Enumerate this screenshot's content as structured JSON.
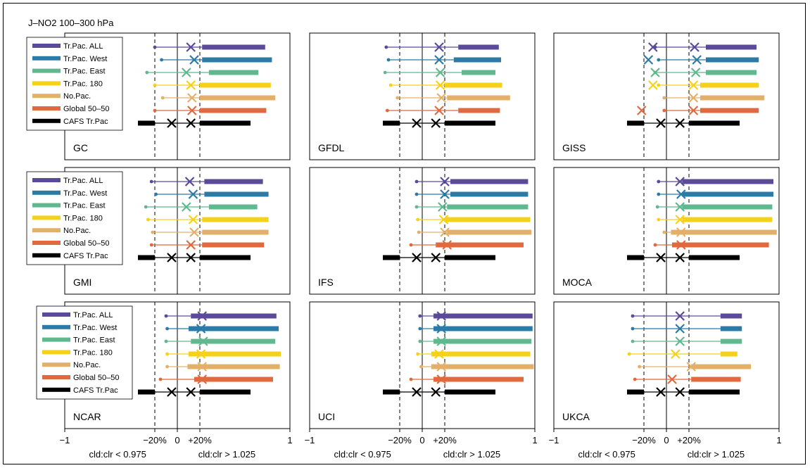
{
  "title": "J–NO2  100–300 hPa",
  "legend": [
    {
      "label": "Tr.Pac. ALL",
      "color": "#5b4a9a"
    },
    {
      "label": "Tr.Pac. West",
      "color": "#2b7ba6"
    },
    {
      "label": "Tr.Pac. East",
      "color": "#5fb88e"
    },
    {
      "label": "Tr.Pac. 180",
      "color": "#f5d11a"
    },
    {
      "label": "No.Pac.",
      "color": "#e3b06a"
    },
    {
      "label": "Global 50–50",
      "color": "#e0693f"
    },
    {
      "label": "CAFS  Tr.Pac",
      "color": "#000000"
    }
  ],
  "axis": {
    "tick_labels": [
      "−1",
      "−20%",
      "0",
      "+20%",
      "1"
    ],
    "neg_label": "cld:clr < 0.975",
    "pos_label": "cld:clr > 1.025"
  },
  "chart_data": {
    "type": "range",
    "xlim": [
      -1,
      1
    ],
    "ref_lines": [
      -0.2,
      0,
      0.2
    ],
    "series_names": [
      "Tr.Pac. ALL",
      "Tr.Pac. West",
      "Tr.Pac. East",
      "Tr.Pac. 180",
      "No.Pac.",
      "Global 50–50",
      "CAFS  Tr.Pac"
    ],
    "cafs": {
      "low": -0.35,
      "neg_end": -0.2,
      "x_neg": -0.05,
      "x_pos": 0.12,
      "pos_start": 0.2,
      "high": 0.65
    },
    "panels": [
      {
        "name": "GC",
        "series": [
          {
            "low": -0.2,
            "neg_end": -0.05,
            "x_neg": null,
            "x_pos": 0.12,
            "pos_start": 0.22,
            "high": 0.78
          },
          {
            "low": -0.14,
            "neg_end": -0.05,
            "x_neg": null,
            "x_pos": 0.15,
            "pos_start": 0.22,
            "high": 0.84
          },
          {
            "low": -0.27,
            "neg_end": -0.05,
            "x_neg": null,
            "x_pos": 0.08,
            "pos_start": 0.28,
            "high": 0.72
          },
          {
            "low": -0.2,
            "neg_end": -0.05,
            "x_neg": null,
            "x_pos": 0.12,
            "pos_start": 0.2,
            "high": 0.83
          },
          {
            "low": -0.13,
            "neg_end": -0.05,
            "x_neg": null,
            "x_pos": 0.13,
            "pos_start": 0.2,
            "high": 0.87
          },
          {
            "low": -0.2,
            "neg_end": -0.05,
            "x_neg": null,
            "x_pos": 0.13,
            "pos_start": 0.2,
            "high": 0.79
          }
        ]
      },
      {
        "name": "GFDL",
        "series": [
          {
            "low": -0.32,
            "neg_end": -0.05,
            "x_neg": null,
            "x_pos": 0.15,
            "pos_start": 0.32,
            "high": 0.68
          },
          {
            "low": -0.3,
            "neg_end": -0.05,
            "x_neg": null,
            "x_pos": 0.15,
            "pos_start": 0.28,
            "high": 0.7
          },
          {
            "low": -0.33,
            "neg_end": -0.05,
            "x_neg": null,
            "x_pos": 0.16,
            "pos_start": 0.35,
            "high": 0.65
          },
          {
            "low": -0.28,
            "neg_end": -0.05,
            "x_neg": null,
            "x_pos": 0.16,
            "pos_start": 0.2,
            "high": 0.71
          },
          {
            "low": -0.22,
            "neg_end": -0.05,
            "x_neg": null,
            "x_pos": 0.17,
            "pos_start": 0.22,
            "high": 0.78
          },
          {
            "low": -0.31,
            "neg_end": -0.05,
            "x_neg": null,
            "x_pos": 0.15,
            "pos_start": 0.32,
            "high": 0.69
          }
        ]
      },
      {
        "name": "GISS",
        "series": [
          {
            "low": -0.1,
            "neg_end": -0.05,
            "x_neg": -0.12,
            "x_pos": 0.25,
            "pos_start": 0.35,
            "high": 0.8
          },
          {
            "low": -0.07,
            "neg_end": -0.05,
            "x_neg": -0.16,
            "x_pos": 0.27,
            "pos_start": 0.35,
            "high": 0.82
          },
          {
            "low": -0.1,
            "neg_end": -0.05,
            "x_neg": -0.1,
            "x_pos": 0.26,
            "pos_start": 0.35,
            "high": 0.8
          },
          {
            "low": -0.07,
            "neg_end": -0.05,
            "x_neg": -0.12,
            "x_pos": 0.24,
            "pos_start": 0.3,
            "high": 0.82
          },
          {
            "low": -0.02,
            "neg_end": -0.05,
            "x_neg": null,
            "x_pos": 0.24,
            "pos_start": 0.3,
            "high": 0.87
          },
          {
            "low": -0.02,
            "neg_end": -0.05,
            "x_neg": -0.22,
            "x_pos": 0.24,
            "pos_start": 0.3,
            "high": 0.82
          }
        ]
      },
      {
        "name": "GMI",
        "series": [
          {
            "low": -0.23,
            "neg_end": -0.05,
            "x_neg": null,
            "x_pos": 0.11,
            "pos_start": 0.24,
            "high": 0.76
          },
          {
            "low": -0.19,
            "neg_end": -0.05,
            "x_neg": null,
            "x_pos": 0.14,
            "pos_start": 0.24,
            "high": 0.81
          },
          {
            "low": -0.28,
            "neg_end": -0.05,
            "x_neg": null,
            "x_pos": 0.08,
            "pos_start": 0.28,
            "high": 0.71
          },
          {
            "low": -0.26,
            "neg_end": -0.05,
            "x_neg": null,
            "x_pos": 0.14,
            "pos_start": 0.22,
            "high": 0.81
          },
          {
            "low": -0.22,
            "neg_end": -0.05,
            "x_neg": null,
            "x_pos": 0.15,
            "pos_start": 0.22,
            "high": 0.81
          },
          {
            "low": -0.23,
            "neg_end": -0.05,
            "x_neg": null,
            "x_pos": 0.12,
            "pos_start": 0.22,
            "high": 0.77
          }
        ]
      },
      {
        "name": "IFS",
        "series": [
          {
            "low": -0.05,
            "neg_end": -0.05,
            "x_neg": null,
            "x_pos": 0.2,
            "pos_start": 0.25,
            "high": 0.94
          },
          {
            "low": -0.05,
            "neg_end": -0.05,
            "x_neg": null,
            "x_pos": 0.2,
            "pos_start": 0.25,
            "high": 0.94
          },
          {
            "low": -0.05,
            "neg_end": -0.05,
            "x_neg": null,
            "x_pos": 0.18,
            "pos_start": 0.22,
            "high": 0.94
          },
          {
            "low": -0.04,
            "neg_end": -0.05,
            "x_neg": null,
            "x_pos": 0.19,
            "pos_start": 0.2,
            "high": 0.96
          },
          {
            "low": -0.03,
            "neg_end": -0.05,
            "x_neg": null,
            "x_pos": 0.2,
            "pos_start": 0.22,
            "high": 0.97
          },
          {
            "low": -0.1,
            "neg_end": -0.05,
            "x_neg": null,
            "x_pos": 0.22,
            "pos_start": 0.12,
            "high": 0.9
          }
        ]
      },
      {
        "name": "MOCA",
        "series": [
          {
            "low": -0.07,
            "neg_end": -0.05,
            "x_neg": null,
            "x_pos": 0.12,
            "pos_start": 0.14,
            "high": 0.95
          },
          {
            "low": -0.07,
            "neg_end": -0.05,
            "x_neg": null,
            "x_pos": 0.13,
            "pos_start": 0.14,
            "high": 0.95
          },
          {
            "low": -0.08,
            "neg_end": -0.05,
            "x_neg": null,
            "x_pos": 0.12,
            "pos_start": 0.14,
            "high": 0.94
          },
          {
            "low": -0.07,
            "neg_end": -0.05,
            "x_neg": null,
            "x_pos": 0.12,
            "pos_start": 0.14,
            "high": 0.94
          },
          {
            "low": -0.02,
            "neg_end": -0.05,
            "x_neg": null,
            "x_pos": 0.13,
            "pos_start": 0.04,
            "high": 0.98
          },
          {
            "low": -0.1,
            "neg_end": -0.05,
            "x_neg": null,
            "x_pos": 0.13,
            "pos_start": 0.05,
            "high": 0.91
          }
        ]
      },
      {
        "name": "NCAR",
        "series": [
          {
            "low": -0.1,
            "neg_end": -0.05,
            "x_neg": null,
            "x_pos": 0.22,
            "pos_start": 0.12,
            "high": 0.88
          },
          {
            "low": -0.09,
            "neg_end": -0.05,
            "x_neg": null,
            "x_pos": 0.21,
            "pos_start": 0.1,
            "high": 0.9
          },
          {
            "low": -0.1,
            "neg_end": -0.05,
            "x_neg": null,
            "x_pos": 0.23,
            "pos_start": 0.12,
            "high": 0.87
          },
          {
            "low": -0.09,
            "neg_end": -0.05,
            "x_neg": null,
            "x_pos": 0.21,
            "pos_start": 0.1,
            "high": 0.92
          },
          {
            "low": -0.09,
            "neg_end": -0.05,
            "x_neg": null,
            "x_pos": 0.22,
            "pos_start": 0.09,
            "high": 0.91
          },
          {
            "low": -0.15,
            "neg_end": -0.05,
            "x_neg": null,
            "x_pos": 0.22,
            "pos_start": 0.15,
            "high": 0.85
          }
        ]
      },
      {
        "name": "UCI",
        "series": [
          {
            "low": -0.02,
            "neg_end": -0.05,
            "x_neg": null,
            "x_pos": 0.17,
            "pos_start": 0.1,
            "high": 0.98
          },
          {
            "low": -0.02,
            "neg_end": -0.05,
            "x_neg": null,
            "x_pos": 0.17,
            "pos_start": 0.1,
            "high": 0.98
          },
          {
            "low": -0.02,
            "neg_end": -0.05,
            "x_neg": null,
            "x_pos": 0.17,
            "pos_start": 0.1,
            "high": 0.97
          },
          {
            "low": -0.04,
            "neg_end": -0.05,
            "x_neg": null,
            "x_pos": 0.15,
            "pos_start": 0.08,
            "high": 0.96
          },
          {
            "low": -0.01,
            "neg_end": -0.05,
            "x_neg": null,
            "x_pos": 0.17,
            "pos_start": 0.08,
            "high": 0.99
          },
          {
            "low": -0.1,
            "neg_end": -0.05,
            "x_neg": null,
            "x_pos": 0.17,
            "pos_start": 0.1,
            "high": 0.9
          }
        ]
      },
      {
        "name": "UKCA",
        "series": [
          {
            "low": -0.3,
            "neg_end": -0.05,
            "x_neg": null,
            "x_pos": 0.12,
            "pos_start": 0.48,
            "high": 0.67
          },
          {
            "low": -0.3,
            "neg_end": -0.05,
            "x_neg": null,
            "x_pos": 0.12,
            "pos_start": 0.48,
            "high": 0.67
          },
          {
            "low": -0.3,
            "neg_end": -0.05,
            "x_neg": null,
            "x_pos": 0.12,
            "pos_start": 0.48,
            "high": 0.67
          },
          {
            "low": -0.33,
            "neg_end": -0.05,
            "x_neg": null,
            "x_pos": 0.08,
            "pos_start": 0.48,
            "high": 0.63
          },
          {
            "low": -0.24,
            "neg_end": -0.05,
            "x_neg": null,
            "x_pos": 0.22,
            "pos_start": 0.22,
            "high": 0.75
          },
          {
            "low": -0.28,
            "neg_end": -0.05,
            "x_neg": null,
            "x_pos": 0.05,
            "pos_start": 0.22,
            "high": 0.66
          }
        ]
      }
    ]
  }
}
